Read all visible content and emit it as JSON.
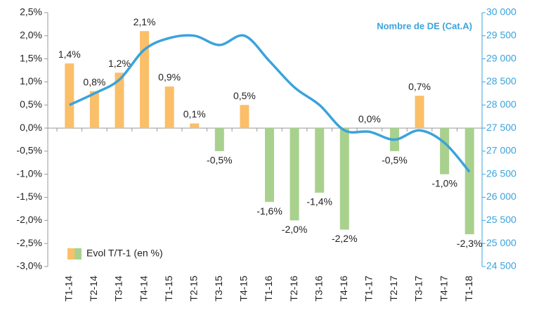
{
  "chart_data": {
    "type": "bar",
    "categories": [
      "T1-14",
      "T2-14",
      "T3-14",
      "T4-14",
      "T1-15",
      "T2-15",
      "T3-15",
      "T4-15",
      "T1-16",
      "T2-16",
      "T3-16",
      "T4-16",
      "T1-17",
      "T2-17",
      "T3-17",
      "T4-17",
      "T1-18"
    ],
    "series": [
      {
        "name": "Evol T/T-1 (en %)",
        "type": "bar",
        "color": "#fbbf6a",
        "negative_color": "#a9d18e",
        "values": [
          1.4,
          0.8,
          1.2,
          2.1,
          0.9,
          0.1,
          -0.5,
          0.5,
          -1.6,
          -2.0,
          -1.4,
          -2.2,
          0.0,
          -0.5,
          0.7,
          -1.0,
          -2.3
        ],
        "value_labels": [
          "1,4%",
          "0,8%",
          "1,2%",
          "2,1%",
          "0,9%",
          "0,1%",
          "-0,5%",
          "0,5%",
          "-1,6%",
          "-2,0%",
          "-1,4%",
          "-2,2%",
          "0,0%",
          "-0,5%",
          "0,7%",
          "-1,0%",
          "-2,3%"
        ]
      },
      {
        "name": "Nombre de DE (Cat.A)",
        "type": "line",
        "axis": "y2",
        "color": "#3aa3dc",
        "values": [
          28000,
          28250,
          28550,
          29200,
          29450,
          29500,
          29300,
          29500,
          28950,
          28380,
          28000,
          27450,
          27420,
          27250,
          27450,
          27180,
          26550
        ]
      }
    ],
    "ylim": [
      -3.0,
      2.5
    ],
    "yticks": [
      {
        "value": 2.5,
        "label": "2,5%"
      },
      {
        "value": 2.0,
        "label": "2,0%"
      },
      {
        "value": 1.5,
        "label": "1,5%"
      },
      {
        "value": 1.0,
        "label": "1,0%"
      },
      {
        "value": 0.5,
        "label": "0,5%"
      },
      {
        "value": 0.0,
        "label": "0,0%"
      },
      {
        "value": -0.5,
        "label": "-0,5%"
      },
      {
        "value": -1.0,
        "label": "-1,0%"
      },
      {
        "value": -1.5,
        "label": "-1,5%"
      },
      {
        "value": -2.0,
        "label": "-2,0%"
      },
      {
        "value": -2.5,
        "label": "-2,5%"
      },
      {
        "value": -3.0,
        "label": "-3,0%"
      }
    ],
    "y2lim": [
      24500,
      30000
    ],
    "y2ticks": [
      {
        "value": 30000,
        "label": "30 000"
      },
      {
        "value": 29500,
        "label": "29 500"
      },
      {
        "value": 29000,
        "label": "29 000"
      },
      {
        "value": 28500,
        "label": "28 500"
      },
      {
        "value": 28000,
        "label": "28 000"
      },
      {
        "value": 27500,
        "label": "27 500"
      },
      {
        "value": 27000,
        "label": "27 000"
      },
      {
        "value": 26500,
        "label": "26 500"
      },
      {
        "value": 26000,
        "label": "26 000"
      },
      {
        "value": 25500,
        "label": "25 500"
      },
      {
        "value": 25000,
        "label": "25 000"
      },
      {
        "value": 24500,
        "label": "24 500"
      }
    ],
    "grid": false
  }
}
